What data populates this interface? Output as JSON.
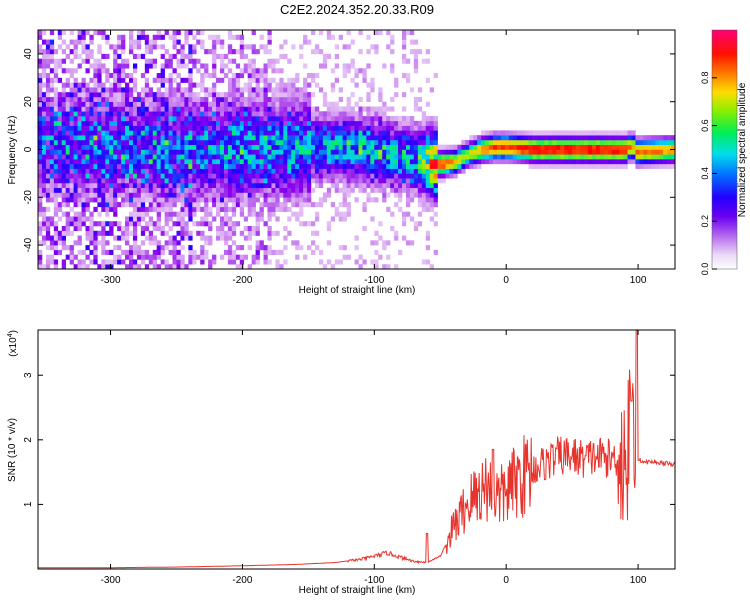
{
  "figure": {
    "title": "C2E2.2024.352.20.33.R09"
  },
  "chart_data": [
    {
      "type": "heatmap",
      "title": "C2E2.2024.352.20.33.R09",
      "xlabel": "Height of straight line (km)",
      "ylabel": "Frequency (Hz)",
      "xlim": [
        -355,
        128
      ],
      "ylim": [
        -50,
        50
      ],
      "x_ticks": [
        -300,
        -200,
        -100,
        0,
        100
      ],
      "y_ticks": [
        -40,
        -20,
        0,
        20,
        40
      ],
      "colorbar": {
        "label": "Normalized spectral amplitude",
        "range": [
          0,
          1
        ],
        "ticks": [
          "0.0",
          "0.2",
          "0.4",
          "0.6",
          "0.8"
        ],
        "colors": [
          "#ffffff",
          "#cc88ee",
          "#8800ee",
          "#2200ff",
          "#00ccff",
          "#00ee66",
          "#aaee00",
          "#ffcc00",
          "#ff5500",
          "#ff0000",
          "#ff0077"
        ]
      },
      "ridge": {
        "description": "dominant spectral ridge frequency vs height",
        "x": [
          -355,
          -300,
          -250,
          -200,
          -150,
          -120,
          -100,
          -80,
          -65,
          -58,
          -50,
          -40,
          -30,
          -20,
          -10,
          0,
          20,
          60,
          90,
          94,
          97,
          128
        ],
        "y": [
          2,
          1,
          0,
          0,
          1,
          1,
          -1,
          -3,
          -5,
          -6,
          -6,
          -5,
          -2,
          0,
          1,
          1,
          0,
          0,
          0,
          2,
          -1,
          0
        ],
        "peak_amplitude": [
          0.25,
          0.28,
          0.3,
          0.35,
          0.4,
          0.42,
          0.45,
          0.4,
          0.5,
          0.75,
          0.85,
          0.7,
          0.6,
          0.75,
          0.85,
          0.85,
          0.9,
          0.92,
          0.9,
          0.7,
          0.8,
          0.75
        ]
      }
    },
    {
      "type": "line",
      "xlabel": "Height of straight line (km)",
      "ylabel": "SNR (10 * v/v)",
      "ylabel_scale": "(x10^4)",
      "scale_base": "x10",
      "scale_exp": "4",
      "xlim": [
        -355,
        128
      ],
      "ylim": [
        0,
        3.7
      ],
      "x_ticks": [
        -300,
        -200,
        -100,
        0,
        100
      ],
      "y_ticks": [
        1,
        2,
        3
      ],
      "line_color": "#e8332c",
      "series": [
        {
          "x": [
            -355,
            -300,
            -250,
            -200,
            -160,
            -130,
            -110,
            -100,
            -90,
            -80,
            -70,
            -60,
            -50,
            -45,
            -40,
            -35,
            -30,
            -25,
            -20,
            -15,
            -10,
            -5,
            0,
            10,
            20,
            30,
            40,
            50,
            60,
            70,
            80,
            85,
            88,
            92,
            95,
            97,
            98,
            100,
            105,
            110,
            128
          ],
          "values": [
            0.02,
            0.02,
            0.03,
            0.05,
            0.07,
            0.1,
            0.15,
            0.2,
            0.25,
            0.18,
            0.12,
            0.1,
            0.2,
            0.4,
            0.65,
            0.8,
            1.0,
            1.1,
            1.2,
            1.3,
            1.2,
            1.1,
            1.2,
            1.4,
            1.55,
            1.65,
            1.75,
            1.75,
            1.7,
            1.75,
            1.7,
            1.75,
            1.7,
            1.8,
            2.0,
            2.0,
            2.5,
            1.7,
            1.65,
            1.66,
            1.62
          ],
          "spikes": [
            {
              "x": -60,
              "value": 0.55
            },
            {
              "x": -10,
              "value": 1.85
            },
            {
              "x": 95,
              "value": 2.6
            },
            {
              "x": 99,
              "value": 3.7
            }
          ]
        }
      ]
    }
  ]
}
